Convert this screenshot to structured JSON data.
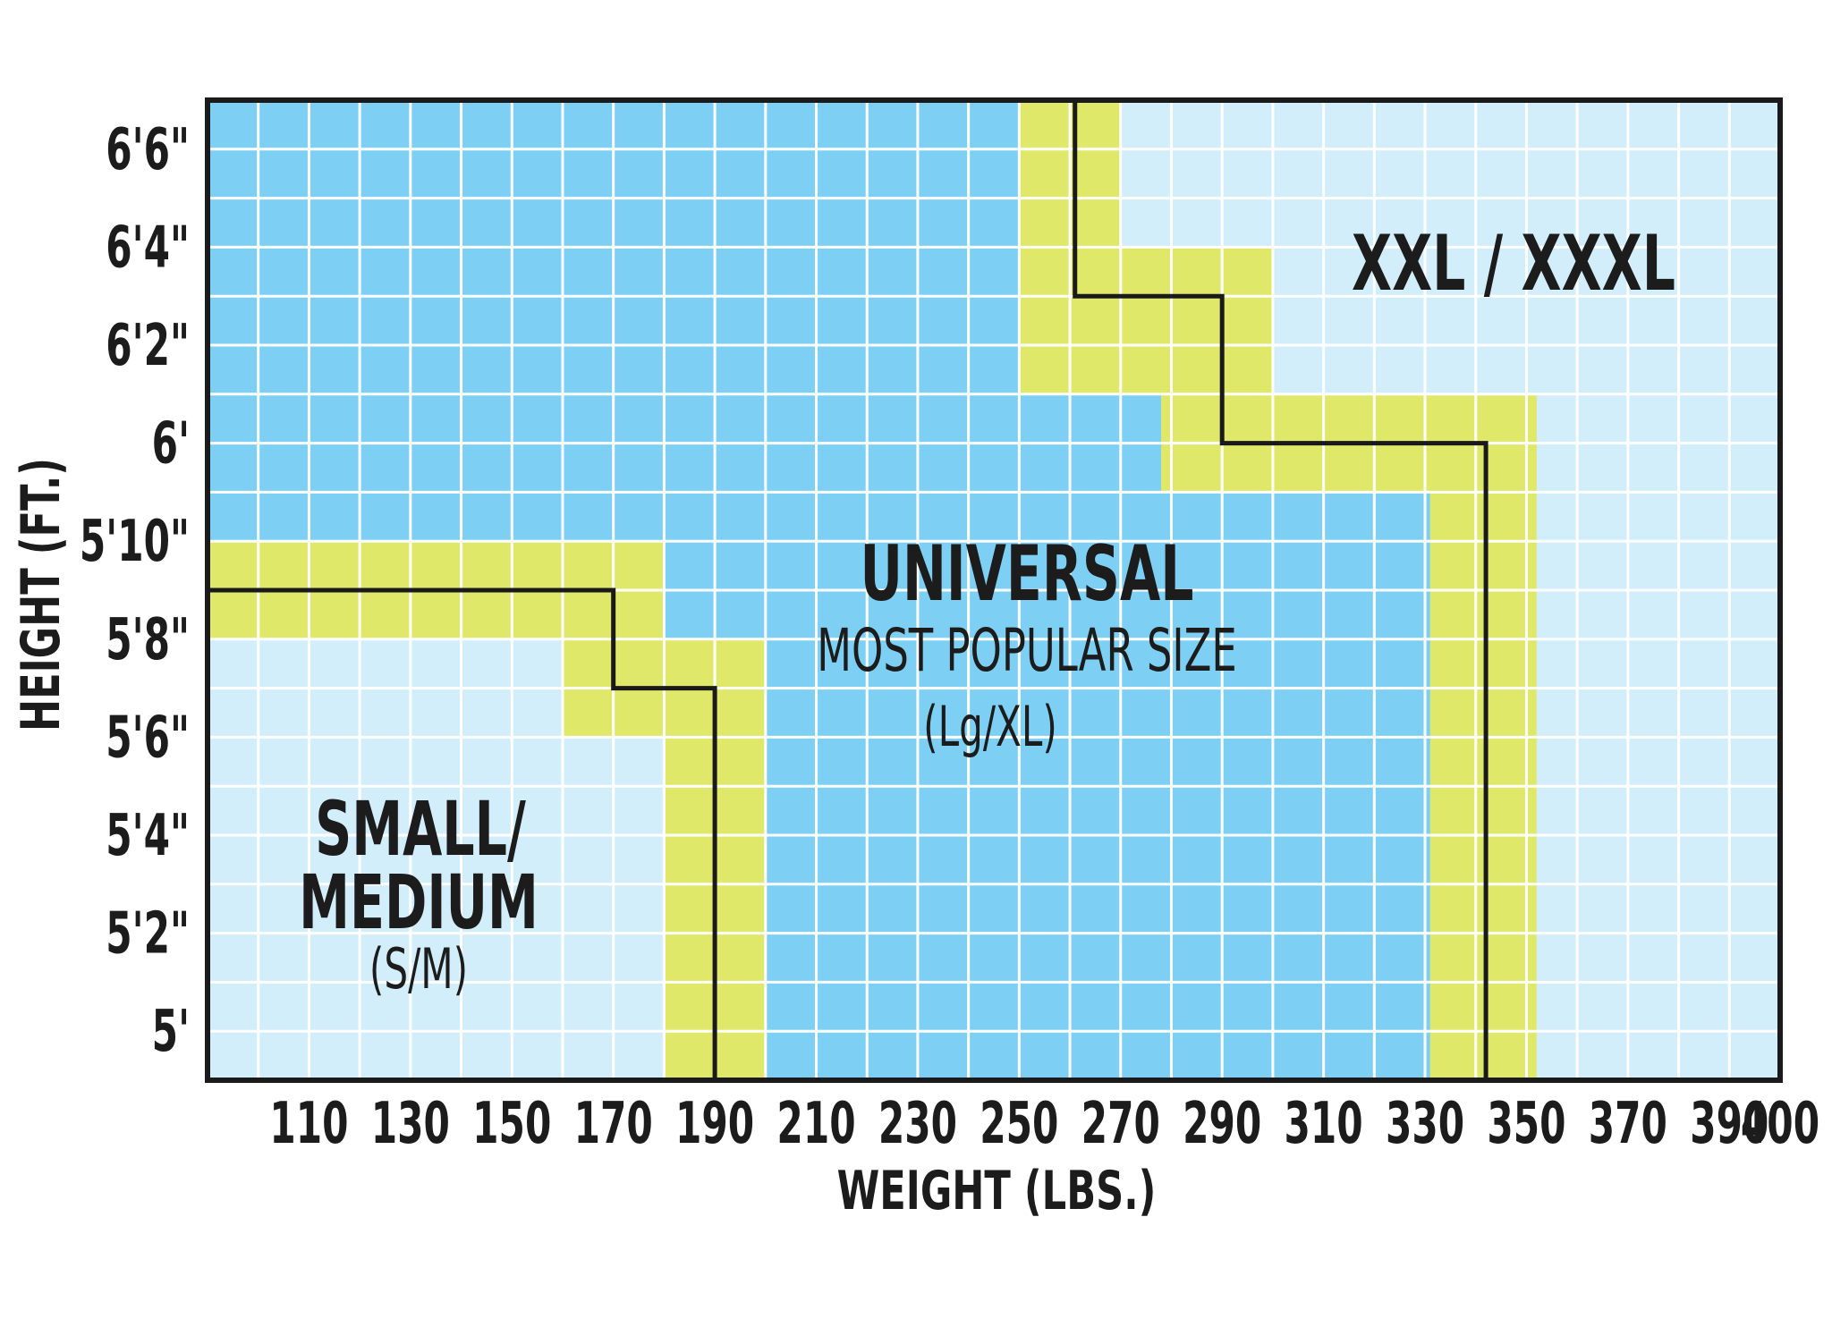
{
  "chart_data": {
    "type": "heatmap",
    "xlabel": "WEIGHT (LBS.)",
    "ylabel": "HEIGHT (FT.)",
    "xlim": [
      90,
      400
    ],
    "ylim_inches": [
      59,
      79
    ],
    "x_ticks": [
      110,
      130,
      150,
      170,
      190,
      210,
      230,
      250,
      270,
      290,
      310,
      330,
      350,
      370,
      390,
      400
    ],
    "y_ticks": [
      {
        "label": "5'",
        "inches": 60
      },
      {
        "label": "5'2\"",
        "inches": 62
      },
      {
        "label": "5'4\"",
        "inches": 64
      },
      {
        "label": "5'6\"",
        "inches": 66
      },
      {
        "label": "5'8\"",
        "inches": 68
      },
      {
        "label": "5'10\"",
        "inches": 70
      },
      {
        "label": "6'",
        "inches": 72
      },
      {
        "label": "6'2\"",
        "inches": 74
      },
      {
        "label": "6'4\"",
        "inches": 76
      },
      {
        "label": "6'6\"",
        "inches": 78
      }
    ],
    "grid": true,
    "colors": {
      "small_medium": "#d3eefb",
      "universal": "#7dd0f4",
      "xxl_xxxl": "#d3eefb",
      "overlap": "#e0e86a",
      "boundary": "#1a1a1a",
      "gridline": "#ffffff",
      "frame": "#1a1a1a"
    },
    "regions": [
      {
        "id": "small_medium",
        "title": "SMALL/",
        "title2": "MEDIUM",
        "subtitle": "(S/M)"
      },
      {
        "id": "universal",
        "title": "UNIVERSAL",
        "subtitle": "MOST POPULAR SIZE",
        "note": "(Lg/XL)"
      },
      {
        "id": "xxl_xxxl",
        "title": "XXL / XXXL"
      }
    ],
    "overlap_bands": [
      {
        "x": [
          90,
          180
        ],
        "y": [
          68,
          70
        ]
      },
      {
        "x": [
          160,
          200
        ],
        "y": [
          66,
          68
        ]
      },
      {
        "x": [
          180,
          200
        ],
        "y": [
          59,
          66
        ]
      },
      {
        "x": [
          250,
          270
        ],
        "y": [
          74,
          79
        ]
      },
      {
        "x": [
          250,
          300
        ],
        "y": [
          73,
          76
        ]
      },
      {
        "x": [
          278,
          300
        ],
        "y": [
          71,
          73
        ]
      },
      {
        "x": [
          278,
          352
        ],
        "y": [
          71,
          72
        ]
      },
      {
        "x": [
          278,
          352
        ],
        "y": [
          72,
          73
        ]
      },
      {
        "x": [
          331,
          352
        ],
        "y": [
          59,
          73
        ]
      }
    ],
    "boundaries": [
      {
        "between": "small_medium|universal",
        "points": [
          [
            90,
            69
          ],
          [
            170,
            69
          ],
          [
            170,
            67
          ],
          [
            190,
            67
          ],
          [
            190,
            59
          ]
        ]
      },
      {
        "between": "universal|xxl_xxxl",
        "points": [
          [
            261,
            79
          ],
          [
            261,
            75
          ],
          [
            290,
            75
          ],
          [
            290,
            72
          ],
          [
            342,
            72
          ],
          [
            342,
            59
          ]
        ]
      }
    ]
  }
}
